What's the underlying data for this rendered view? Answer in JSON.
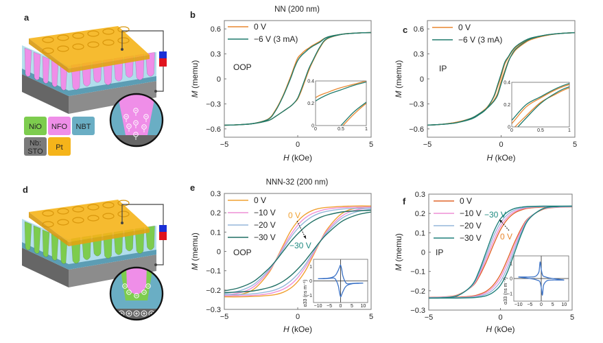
{
  "figure": {
    "panel_labels": {
      "a": "a",
      "b": "b",
      "c": "c",
      "d": "d",
      "e": "e",
      "f": "f"
    },
    "schematic_legend": [
      {
        "lines": [
          "NiO"
        ],
        "color": "#7dcc4e"
      },
      {
        "lines": [
          "NFO"
        ],
        "color": "#ef8ee8"
      },
      {
        "lines": [
          "NBT"
        ],
        "color": "#6aaec4"
      },
      {
        "lines": [
          "Nb:",
          "STO"
        ],
        "color": "#7a7a7a"
      },
      {
        "lines": [
          "Pt"
        ],
        "color": "#f5b41a"
      }
    ],
    "schematic_colors": {
      "pt": "#f5b41a",
      "nfo": "#ef8ee8",
      "nio": "#7dcc4e",
      "nbt": "#a9d9ea",
      "sto": "#7a7a7a",
      "battery_top": "#1a2fd6",
      "battery_bottom": "#e0141e"
    }
  },
  "chart_data": [
    {
      "panel": "b",
      "type": "line",
      "title": "NN (200 nm)",
      "mode_label": "OOP",
      "xlabel_var": "H",
      "xlabel_unit": " (kOe)",
      "ylabel_var": "M",
      "ylabel_unit": " (memu)",
      "xlim": [
        -5,
        5
      ],
      "ylim": [
        -0.7,
        0.7
      ],
      "xticks": [
        -5,
        0,
        5
      ],
      "xtick_labels": [
        "−5",
        "0",
        "5"
      ],
      "yticks": [
        -0.6,
        -0.3,
        0,
        0.3,
        0.6
      ],
      "ytick_labels": [
        "−0.6",
        "−0.3",
        "0",
        "0.3",
        "0.6"
      ],
      "legend_position": "top-left",
      "H": [
        -5,
        -4,
        -3,
        -2,
        -1.5,
        -1,
        -0.5,
        -0.25,
        0,
        0.25,
        0.5,
        0.75,
        1,
        1.5,
        2,
        3,
        4,
        5
      ],
      "series": [
        {
          "name": "0 V",
          "color": "#e8862e",
          "ascending": [
            -0.556,
            -0.55,
            -0.535,
            -0.5,
            -0.45,
            -0.39,
            -0.33,
            -0.29,
            -0.24,
            -0.14,
            -0.02,
            0.1,
            0.2,
            0.37,
            0.48,
            0.535,
            0.55,
            0.556
          ],
          "descending": [
            -0.556,
            -0.55,
            -0.535,
            -0.48,
            -0.37,
            -0.2,
            0.02,
            0.14,
            0.25,
            0.3,
            0.34,
            0.37,
            0.4,
            0.45,
            0.5,
            0.535,
            0.55,
            0.556
          ]
        },
        {
          "name": "−6 V (3 mA)",
          "color": "#1f7a6b",
          "ascending": [
            -0.556,
            -0.55,
            -0.535,
            -0.5,
            -0.45,
            -0.39,
            -0.33,
            -0.29,
            -0.23,
            -0.12,
            0.0,
            0.12,
            0.21,
            0.38,
            0.485,
            0.535,
            0.55,
            0.556
          ],
          "descending": [
            -0.556,
            -0.55,
            -0.535,
            -0.485,
            -0.38,
            -0.21,
            0.0,
            0.12,
            0.22,
            0.28,
            0.32,
            0.36,
            0.39,
            0.44,
            0.5,
            0.535,
            0.55,
            0.556
          ]
        }
      ],
      "inset": {
        "xlim": [
          0,
          1
        ],
        "ylim": [
          0,
          0.4
        ],
        "xticks": [
          0,
          0.5,
          1
        ],
        "xtick_labels": [
          "0",
          "0.5",
          "1"
        ],
        "yticks": [
          0,
          0.2,
          0.4
        ],
        "ytick_labels": [
          "0",
          "0.2",
          "0.4"
        ]
      }
    },
    {
      "panel": "c",
      "type": "line",
      "title": "",
      "mode_label": "IP",
      "xlabel_var": "H",
      "xlabel_unit": " (kOe)",
      "ylabel_var": "M",
      "ylabel_unit": " (memu)",
      "xlim": [
        -5,
        5
      ],
      "ylim": [
        -0.7,
        0.7
      ],
      "xticks": [
        -5,
        0,
        5
      ],
      "xtick_labels": [
        "−5",
        "0",
        "5"
      ],
      "yticks": [
        -0.6,
        -0.3,
        0,
        0.3,
        0.6
      ],
      "ytick_labels": [
        "−0.6",
        "−0.3",
        "0",
        "0.3",
        "0.6"
      ],
      "legend_position": "top-left",
      "H": [
        -5,
        -4,
        -3,
        -2,
        -1.5,
        -1,
        -0.5,
        -0.25,
        0,
        0.25,
        0.5,
        0.75,
        1,
        1.5,
        2,
        3,
        4,
        5
      ],
      "series": [
        {
          "name": "0 V",
          "color": "#e8862e",
          "ascending": [
            -0.555,
            -0.545,
            -0.52,
            -0.47,
            -0.42,
            -0.35,
            -0.26,
            -0.18,
            -0.03,
            0.1,
            0.22,
            0.29,
            0.35,
            0.42,
            0.47,
            0.52,
            0.545,
            0.555
          ],
          "descending": [
            -0.555,
            -0.545,
            -0.52,
            -0.47,
            -0.42,
            -0.35,
            -0.22,
            -0.1,
            0.03,
            0.18,
            0.26,
            0.33,
            0.38,
            0.44,
            0.48,
            0.52,
            0.545,
            0.555
          ]
        },
        {
          "name": "−6 V (3 mA)",
          "color": "#1f7a6b",
          "ascending": [
            -0.555,
            -0.545,
            -0.525,
            -0.47,
            -0.42,
            -0.36,
            -0.27,
            -0.2,
            -0.06,
            0.08,
            0.21,
            0.3,
            0.36,
            0.43,
            0.48,
            0.525,
            0.545,
            0.555
          ],
          "descending": [
            -0.555,
            -0.545,
            -0.525,
            -0.48,
            -0.43,
            -0.36,
            -0.21,
            -0.08,
            0.06,
            0.2,
            0.27,
            0.34,
            0.39,
            0.45,
            0.49,
            0.525,
            0.545,
            0.555
          ]
        }
      ],
      "inset": {
        "xlim": [
          0,
          1
        ],
        "ylim": [
          0,
          0.4
        ],
        "xticks": [
          0,
          0.5,
          1
        ],
        "xtick_labels": [
          "0",
          "0.5",
          "1"
        ],
        "yticks": [
          0,
          0.2,
          0.4
        ],
        "ytick_labels": [
          "0",
          "0.2",
          "0.4"
        ]
      }
    },
    {
      "panel": "e",
      "type": "line",
      "title": "NNN-32 (200 nm)",
      "mode_label": "OOP",
      "xlabel_var": "H",
      "xlabel_unit": " (kOe)",
      "ylabel_var": "M",
      "ylabel_unit": " (memu)",
      "xlim": [
        -5,
        5
      ],
      "ylim": [
        -0.3,
        0.3
      ],
      "xticks": [
        -5,
        0,
        5
      ],
      "xtick_labels": [
        "−5",
        "0",
        "5"
      ],
      "yticks": [
        -0.3,
        -0.2,
        -0.1,
        0,
        0.1,
        0.2,
        0.3
      ],
      "ytick_labels": [
        "−0.3",
        "−0.2",
        "−0.1",
        "0",
        "0.1",
        "0.2",
        "0.3"
      ],
      "legend_position": "top-left",
      "annotations": [
        {
          "text": "0 V",
          "color": "#f0a030"
        },
        {
          "text": "−30 V",
          "color": "#1e8a80"
        }
      ],
      "H": [
        -5,
        -4,
        -3,
        -2,
        -1.5,
        -1,
        -0.5,
        0,
        0.5,
        1,
        1.5,
        2,
        3,
        4,
        5
      ],
      "series": [
        {
          "name": "0 V",
          "color": "#f0a030",
          "descending": [
            -0.232,
            -0.224,
            -0.196,
            -0.114,
            -0.046,
            0.03,
            0.103,
            0.156,
            0.191,
            0.212,
            0.223,
            0.228,
            0.233,
            0.235,
            0.235
          ],
          "ascending": [
            -0.235,
            -0.235,
            -0.233,
            -0.228,
            -0.223,
            -0.212,
            -0.191,
            -0.156,
            -0.103,
            -0.03,
            0.046,
            0.114,
            0.196,
            0.224,
            0.232
          ]
        },
        {
          "name": "−10 V",
          "color": "#ee8fd6",
          "descending": [
            -0.225,
            -0.215,
            -0.183,
            -0.106,
            -0.048,
            0.021,
            0.083,
            0.136,
            0.173,
            0.196,
            0.21,
            0.219,
            0.227,
            0.229,
            0.23
          ],
          "ascending": [
            -0.23,
            -0.229,
            -0.227,
            -0.219,
            -0.21,
            -0.196,
            -0.173,
            -0.136,
            -0.083,
            -0.021,
            0.048,
            0.106,
            0.183,
            0.215,
            0.225
          ]
        },
        {
          "name": "−20 V",
          "color": "#93b6da",
          "descending": [
            -0.218,
            -0.205,
            -0.171,
            -0.099,
            -0.047,
            0.011,
            0.07,
            0.118,
            0.154,
            0.181,
            0.198,
            0.208,
            0.219,
            0.223,
            0.224
          ],
          "ascending": [
            -0.224,
            -0.223,
            -0.219,
            -0.208,
            -0.198,
            -0.181,
            -0.154,
            -0.118,
            -0.07,
            -0.011,
            0.047,
            0.099,
            0.171,
            0.205,
            0.218
          ]
        },
        {
          "name": "−30 V",
          "color": "#1e6f64",
          "descending": [
            -0.204,
            -0.188,
            -0.155,
            -0.091,
            -0.049,
            0.0,
            0.049,
            0.091,
            0.127,
            0.155,
            0.175,
            0.188,
            0.204,
            0.21,
            0.213
          ],
          "ascending": [
            -0.213,
            -0.21,
            -0.204,
            -0.188,
            -0.175,
            -0.155,
            -0.127,
            -0.091,
            -0.049,
            0.0,
            0.049,
            0.091,
            0.155,
            0.188,
            0.204
          ]
        }
      ],
      "inset": {
        "ylabel": "α33 (ns m⁻¹)",
        "xlim": [
          -12,
          12
        ],
        "ylim": [
          -1.5,
          1.5
        ],
        "xticks": [
          -10,
          -5,
          0,
          5,
          10
        ],
        "xtick_labels": [
          "−10",
          "−5",
          "0",
          "5",
          "10"
        ],
        "yticks": [
          -1,
          0,
          1
        ],
        "ytick_labels": [
          "−1",
          "0",
          "1"
        ],
        "x": [
          -10,
          -7.5,
          -5,
          -3,
          -2,
          -1,
          -0.5,
          0,
          0.5,
          1,
          2,
          3,
          5,
          7.5,
          10
        ],
        "color": "#3b72c6",
        "branches": [
          [
            0.15,
            0.17,
            0.2,
            0.3,
            0.45,
            0.75,
            0.95,
            1.1,
            0.8,
            0.35,
            -0.05,
            -0.2,
            -0.17,
            -0.15,
            -0.15
          ],
          [
            0.15,
            0.15,
            0.17,
            0.2,
            0.05,
            -0.35,
            -0.8,
            -1.1,
            -0.95,
            -0.75,
            -0.45,
            -0.3,
            -0.2,
            -0.17,
            -0.15
          ]
        ]
      }
    },
    {
      "panel": "f",
      "type": "line",
      "title": "",
      "mode_label": "IP",
      "xlabel_var": "H",
      "xlabel_unit": " (kOe)",
      "ylabel_var": "M",
      "ylabel_unit": " (memu)",
      "xlim": [
        -5,
        5
      ],
      "ylim": [
        -0.3,
        0.3
      ],
      "xticks": [
        -5,
        0,
        5
      ],
      "xtick_labels": [
        "−5",
        "0",
        "5"
      ],
      "yticks": [
        -0.3,
        -0.2,
        -0.1,
        0,
        0.1,
        0.2,
        0.3
      ],
      "ytick_labels": [
        "−0.3",
        "−0.2",
        "−0.1",
        "0",
        "0.1",
        "0.2",
        "0.3"
      ],
      "legend_position": "top-left",
      "annotations": [
        {
          "text": "−30 V",
          "color": "#1e8a80"
        },
        {
          "text": "0 V",
          "color": "#e8862e"
        }
      ],
      "H": [
        -5,
        -4,
        -3,
        -2,
        -1.5,
        -1,
        -0.5,
        0,
        0.5,
        1,
        1.5,
        2,
        3,
        4,
        5
      ],
      "series": [
        {
          "name": "0 V",
          "color": "#e0652a",
          "descending": [
            -0.234,
            -0.232,
            -0.222,
            -0.179,
            -0.129,
            -0.053,
            0.035,
            0.116,
            0.171,
            0.203,
            0.219,
            0.228,
            0.233,
            0.235,
            0.235
          ],
          "ascending": [
            -0.235,
            -0.235,
            -0.233,
            -0.228,
            -0.219,
            -0.203,
            -0.171,
            -0.116,
            -0.035,
            0.053,
            0.129,
            0.179,
            0.222,
            0.232,
            0.234
          ]
        },
        {
          "name": "−10 V",
          "color": "#ee8fd6",
          "descending": [
            -0.235,
            -0.233,
            -0.224,
            -0.177,
            -0.12,
            -0.036,
            0.055,
            0.133,
            0.182,
            0.21,
            0.224,
            0.231,
            0.235,
            0.236,
            0.236
          ],
          "ascending": [
            -0.236,
            -0.236,
            -0.235,
            -0.231,
            -0.224,
            -0.21,
            -0.182,
            -0.133,
            -0.055,
            0.036,
            0.12,
            0.177,
            0.224,
            0.233,
            0.235
          ]
        },
        {
          "name": "−20 V",
          "color": "#93b6da",
          "descending": [
            -0.236,
            -0.234,
            -0.225,
            -0.175,
            -0.11,
            -0.018,
            0.078,
            0.152,
            0.195,
            0.218,
            0.228,
            0.233,
            0.236,
            0.237,
            0.237
          ],
          "ascending": [
            -0.237,
            -0.237,
            -0.236,
            -0.233,
            -0.228,
            -0.218,
            -0.195,
            -0.152,
            -0.078,
            0.018,
            0.11,
            0.175,
            0.225,
            0.234,
            0.236
          ]
        },
        {
          "name": "−30 V",
          "color": "#1e7f7a",
          "descending": [
            -0.238,
            -0.236,
            -0.226,
            -0.172,
            -0.1,
            0.0,
            0.1,
            0.172,
            0.208,
            0.226,
            0.233,
            0.236,
            0.238,
            0.238,
            0.238
          ],
          "ascending": [
            -0.238,
            -0.238,
            -0.238,
            -0.236,
            -0.233,
            -0.226,
            -0.208,
            -0.172,
            -0.1,
            0.0,
            0.1,
            0.172,
            0.226,
            0.236,
            0.238
          ]
        }
      ],
      "inset": {
        "ylabel": "α33 (ns m⁻¹)",
        "xlim": [
          -12,
          12
        ],
        "ylim": [
          -1.5,
          1.5
        ],
        "xticks": [
          -10,
          -5,
          0,
          5,
          10
        ],
        "xtick_labels": [
          "−10",
          "−5",
          "0",
          "5",
          "10"
        ],
        "yticks": [
          -1,
          0,
          1
        ],
        "ytick_labels": [
          "−1",
          "0",
          "1"
        ],
        "x": [
          -10,
          -7.5,
          -5,
          -3,
          -2,
          -1,
          -0.5,
          0,
          0.5,
          1,
          2,
          3,
          5,
          7.5,
          10
        ],
        "color": "#3b72c6",
        "branches": [
          [
            0.1,
            0.1,
            0.1,
            0.12,
            0.2,
            0.45,
            1.1,
            0.6,
            0.25,
            0.15,
            0.1,
            0.05,
            0.0,
            -0.05,
            -0.1
          ],
          [
            0.1,
            0.05,
            0.0,
            -0.05,
            -0.1,
            -0.15,
            -0.25,
            -0.6,
            -1.1,
            -0.45,
            -0.2,
            -0.12,
            -0.1,
            -0.1,
            -0.1
          ]
        ]
      }
    }
  ]
}
